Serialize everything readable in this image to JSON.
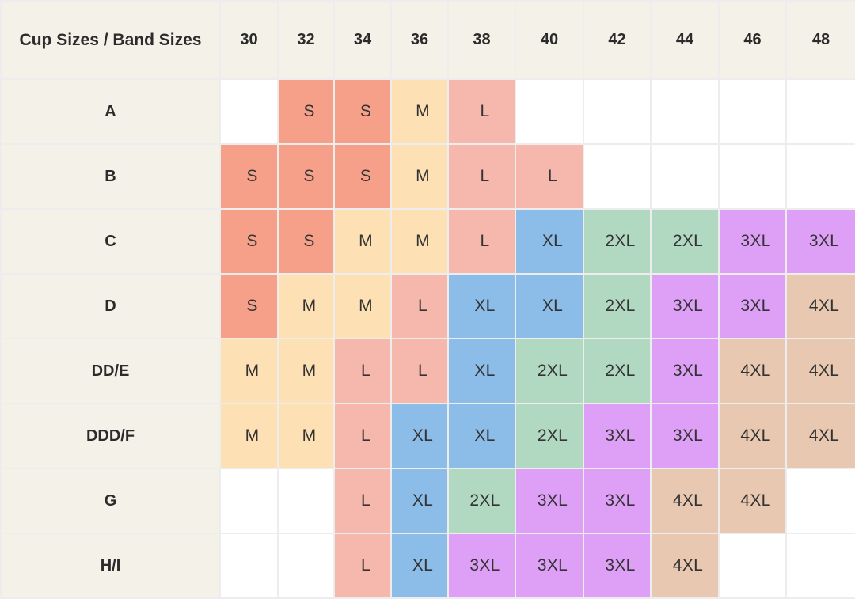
{
  "table": {
    "corner_label": "Cup Sizes / Band Sizes",
    "band_sizes": [
      "30",
      "32",
      "34",
      "36",
      "38",
      "40",
      "42",
      "44",
      "46",
      "48"
    ],
    "rows": [
      {
        "cup": "A",
        "cells": [
          "",
          "S",
          "S",
          "M",
          "L",
          "",
          "",
          "",
          "",
          ""
        ]
      },
      {
        "cup": "B",
        "cells": [
          "S",
          "S",
          "S",
          "M",
          "L",
          "L",
          "",
          "",
          "",
          ""
        ]
      },
      {
        "cup": "C",
        "cells": [
          "S",
          "S",
          "M",
          "M",
          "L",
          "XL",
          "2XL",
          "2XL",
          "3XL",
          "3XL"
        ]
      },
      {
        "cup": "D",
        "cells": [
          "S",
          "M",
          "M",
          "L",
          "XL",
          "XL",
          "2XL",
          "3XL",
          "3XL",
          "4XL"
        ]
      },
      {
        "cup": "DD/E",
        "cells": [
          "M",
          "M",
          "L",
          "L",
          "XL",
          "2XL",
          "2XL",
          "3XL",
          "4XL",
          "4XL"
        ]
      },
      {
        "cup": "DDD/F",
        "cells": [
          "M",
          "M",
          "L",
          "XL",
          "XL",
          "2XL",
          "3XL",
          "3XL",
          "4XL",
          "4XL"
        ]
      },
      {
        "cup": "G",
        "cells": [
          "",
          "",
          "L",
          "XL",
          "2XL",
          "3XL",
          "3XL",
          "4XL",
          "4XL",
          ""
        ]
      },
      {
        "cup": "H/I",
        "cells": [
          "",
          "",
          "L",
          "XL",
          "3XL",
          "3XL",
          "3XL",
          "4XL",
          "",
          ""
        ]
      }
    ]
  },
  "size_colors": {
    "S": "#f6a08a",
    "M": "#fde0b3",
    "L": "#f6b7ad",
    "XL": "#8cbce8",
    "2XL": "#b1d8c0",
    "3XL": "#dea0f6",
    "4XL": "#e8c8b0",
    "empty": "#ffffff"
  }
}
